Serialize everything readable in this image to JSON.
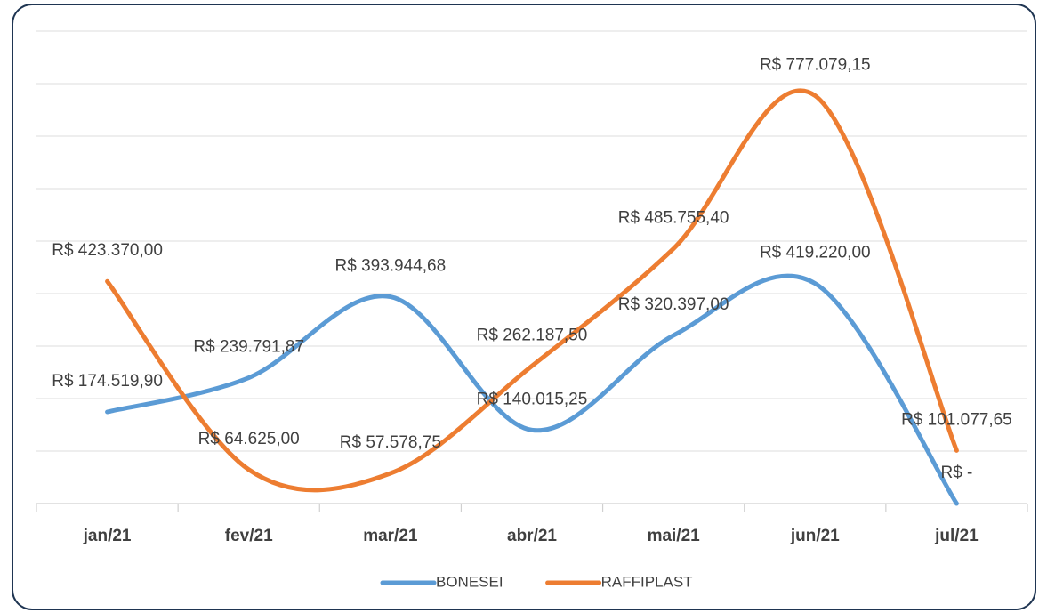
{
  "chart_data": {
    "type": "line",
    "categories": [
      "jan/21",
      "fev/21",
      "mar/21",
      "abr/21",
      "mai/21",
      "jun/21",
      "jul/21"
    ],
    "series": [
      {
        "name": "BONESEI",
        "color": "#5b9bd5",
        "values": [
          174519.9,
          239791.87,
          393944.68,
          140015.25,
          320397.0,
          419220.0,
          0
        ],
        "value_labels": [
          "R$ 174.519,90",
          "R$ 239.791,87",
          "R$ 393.944,68",
          "R$ 140.015,25",
          "R$ 320.397,00",
          "R$ 419.220,00",
          "R$ -"
        ]
      },
      {
        "name": "RAFFIPLAST",
        "color": "#ed7d31",
        "values": [
          423370.0,
          64625.0,
          57578.75,
          262187.5,
          485755.4,
          777079.15,
          101077.65
        ],
        "value_labels": [
          "R$ 423.370,00",
          "R$ 64.625,00",
          "R$ 57.578,75",
          "R$ 262.187,50",
          "R$ 485.755,40",
          "R$ 777.079,15",
          "R$ 101.077,65"
        ]
      }
    ],
    "ylim": [
      0,
      900000
    ],
    "yticks": [
      0,
      100000,
      200000,
      300000,
      400000,
      500000,
      600000,
      700000,
      800000,
      900000
    ],
    "grid": true,
    "smooth": true,
    "legend": "bottom"
  }
}
